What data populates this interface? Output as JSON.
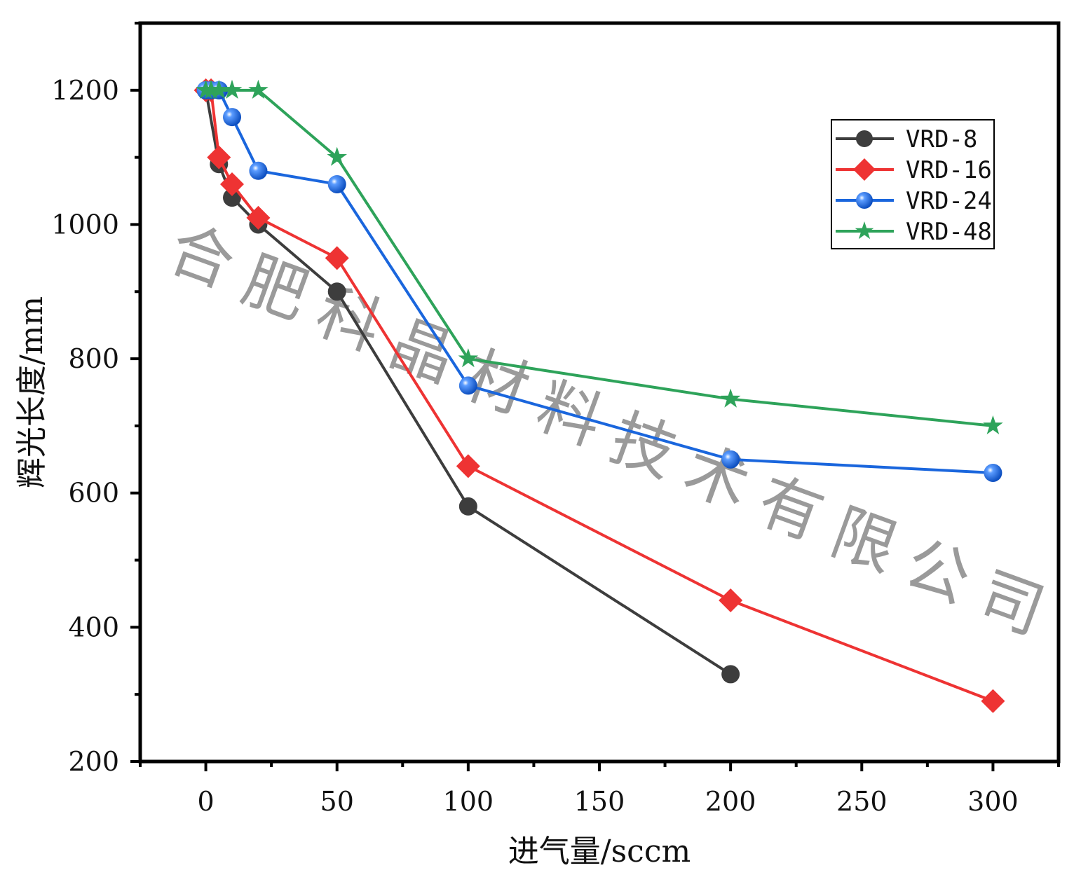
{
  "chart_data": {
    "type": "line",
    "title": "",
    "xlabel": "进气量/sccm",
    "ylabel": "辉光长度/mm",
    "xlim": [
      -25,
      325
    ],
    "ylim": [
      200,
      1300
    ],
    "xticks": [
      0,
      50,
      100,
      150,
      200,
      250,
      300
    ],
    "yticks": [
      200,
      400,
      600,
      800,
      1000,
      1200
    ],
    "grid": false,
    "legend_position": "top-right",
    "series": [
      {
        "name": "VRD-8",
        "color": "#3d3d3d",
        "marker": "circle",
        "x": [
          0,
          5,
          10,
          20,
          50,
          100,
          200
        ],
        "y": [
          1200,
          1090,
          1040,
          1000,
          900,
          580,
          330
        ]
      },
      {
        "name": "VRD-16",
        "color": "#ee3333",
        "marker": "diamond",
        "x": [
          0,
          2,
          5,
          10,
          20,
          50,
          100,
          200,
          300
        ],
        "y": [
          1200,
          1200,
          1100,
          1060,
          1010,
          950,
          640,
          440,
          290
        ]
      },
      {
        "name": "VRD-24",
        "color": "#1a66dd",
        "marker": "sphere",
        "x": [
          0,
          2,
          5,
          10,
          20,
          50,
          100,
          200,
          300
        ],
        "y": [
          1200,
          1200,
          1200,
          1160,
          1080,
          1060,
          760,
          650,
          630
        ]
      },
      {
        "name": "VRD-48",
        "color": "#2ea35a",
        "marker": "star",
        "x": [
          0,
          2,
          5,
          10,
          20,
          50,
          100,
          200,
          300
        ],
        "y": [
          1200,
          1200,
          1200,
          1200,
          1200,
          1100,
          800,
          740,
          700
        ]
      }
    ]
  },
  "watermark": "合肥科晶材料技术有限公司"
}
